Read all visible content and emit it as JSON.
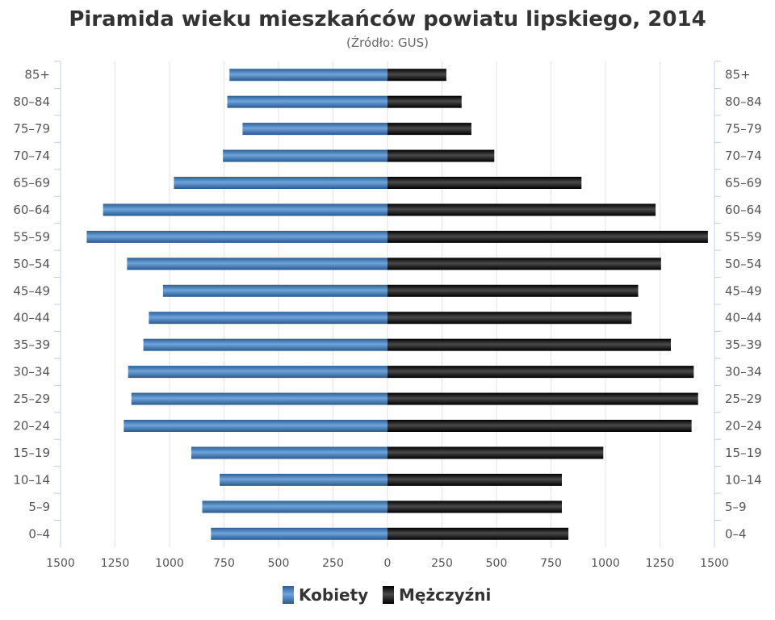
{
  "chart_data": {
    "type": "bar",
    "orientation": "horizontal",
    "subtype": "population-pyramid",
    "title": "Piramida wieku mieszkańców powiatu lipskiego, 2014",
    "subtitle": "(Źródło: GUS)",
    "categories": [
      "0–4",
      "5–9",
      "10–14",
      "15–19",
      "20–24",
      "25–29",
      "30–34",
      "35–39",
      "40–44",
      "45–49",
      "50–54",
      "55–59",
      "60–64",
      "65–69",
      "70–74",
      "75–79",
      "80–84",
      "85+"
    ],
    "series": [
      {
        "name": "Kobiety",
        "color": "#4a86c5",
        "side": "left",
        "values": [
          810,
          850,
          770,
          900,
          1210,
          1175,
          1190,
          1120,
          1095,
          1030,
          1195,
          1380,
          1305,
          980,
          755,
          665,
          735,
          725
        ]
      },
      {
        "name": "Mężczyźni",
        "color": "#1a1a1a",
        "side": "right",
        "values": [
          830,
          800,
          800,
          990,
          1395,
          1425,
          1405,
          1300,
          1120,
          1150,
          1255,
          1470,
          1230,
          890,
          490,
          385,
          340,
          270
        ]
      }
    ],
    "xlim": [
      -1500,
      1500
    ],
    "x_ticks": [
      "1500",
      "1250",
      "1000",
      "750",
      "500",
      "250",
      "0",
      "250",
      "500",
      "750",
      "1000",
      "1250",
      "1500"
    ],
    "grid": true,
    "legend": "bottom-center"
  }
}
